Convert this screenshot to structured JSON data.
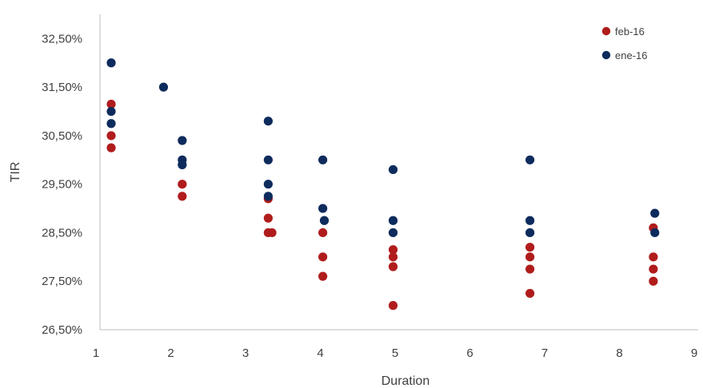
{
  "chart_data": {
    "type": "scatter",
    "xlabel": "Duration",
    "ylabel": "TIR",
    "xlim": [
      1,
      9
    ],
    "ylim": [
      26.5,
      33.0
    ],
    "x_ticks": [
      "1",
      "2",
      "3",
      "4",
      "5",
      "6",
      "7",
      "8",
      "9"
    ],
    "y_ticks": [
      "26,50%",
      "27,50%",
      "28,50%",
      "29,50%",
      "30,50%",
      "31,50%",
      "32,50%"
    ],
    "grid": false,
    "legend_position": "top-right",
    "series": [
      {
        "name": "feb-16",
        "color": "#B01C1C",
        "points": [
          [
            1.15,
            31.15
          ],
          [
            1.15,
            30.5
          ],
          [
            1.15,
            30.25
          ],
          [
            2.1,
            29.5
          ],
          [
            2.1,
            29.25
          ],
          [
            3.25,
            29.2
          ],
          [
            3.25,
            28.8
          ],
          [
            3.25,
            28.5
          ],
          [
            3.3,
            28.5
          ],
          [
            3.98,
            28.5
          ],
          [
            3.98,
            28.0
          ],
          [
            3.98,
            27.6
          ],
          [
            4.92,
            28.15
          ],
          [
            4.92,
            28.0
          ],
          [
            4.92,
            27.8
          ],
          [
            4.92,
            27.0
          ],
          [
            6.75,
            28.2
          ],
          [
            6.75,
            28.0
          ],
          [
            6.75,
            27.75
          ],
          [
            6.75,
            27.25
          ],
          [
            8.4,
            28.6
          ],
          [
            8.4,
            28.0
          ],
          [
            8.4,
            27.75
          ],
          [
            8.4,
            27.5
          ]
        ]
      },
      {
        "name": "ene-16",
        "color": "#0D2B5C",
        "points": [
          [
            1.15,
            32.0
          ],
          [
            1.15,
            31.0
          ],
          [
            1.15,
            30.75
          ],
          [
            1.85,
            31.5
          ],
          [
            2.1,
            30.4
          ],
          [
            2.1,
            30.0
          ],
          [
            2.1,
            29.9
          ],
          [
            3.25,
            30.8
          ],
          [
            3.25,
            30.0
          ],
          [
            3.25,
            29.5
          ],
          [
            3.25,
            29.25
          ],
          [
            3.98,
            30.0
          ],
          [
            3.98,
            29.0
          ],
          [
            4.0,
            28.75
          ],
          [
            4.92,
            29.8
          ],
          [
            4.92,
            28.75
          ],
          [
            4.92,
            28.5
          ],
          [
            6.75,
            30.0
          ],
          [
            6.75,
            28.75
          ],
          [
            6.75,
            28.5
          ],
          [
            8.42,
            28.9
          ],
          [
            8.42,
            28.5
          ]
        ]
      }
    ]
  }
}
